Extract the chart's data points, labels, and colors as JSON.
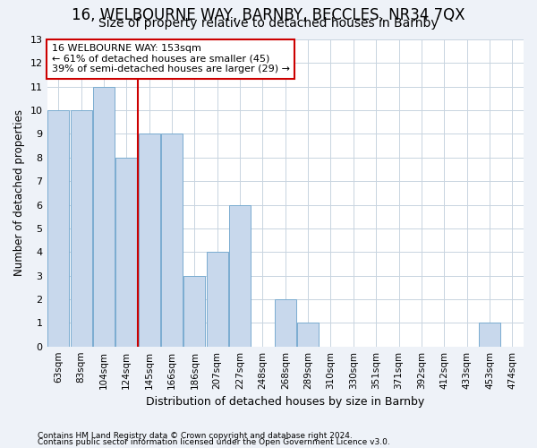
{
  "title": "16, WELBOURNE WAY, BARNBY, BECCLES, NR34 7QX",
  "subtitle": "Size of property relative to detached houses in Barnby",
  "xlabel": "Distribution of detached houses by size in Barnby",
  "ylabel": "Number of detached properties",
  "categories": [
    "63sqm",
    "83sqm",
    "104sqm",
    "124sqm",
    "145sqm",
    "166sqm",
    "186sqm",
    "207sqm",
    "227sqm",
    "248sqm",
    "268sqm",
    "289sqm",
    "310sqm",
    "330sqm",
    "351sqm",
    "371sqm",
    "392sqm",
    "412sqm",
    "433sqm",
    "453sqm",
    "474sqm"
  ],
  "values": [
    10,
    10,
    11,
    8,
    9,
    9,
    3,
    4,
    6,
    0,
    2,
    1,
    0,
    0,
    0,
    0,
    0,
    0,
    0,
    1,
    0
  ],
  "bar_color": "#c8d8ec",
  "bar_edge_color": "#7aacd0",
  "redline_index": 4,
  "redline_color": "#cc0000",
  "annotation_title": "16 WELBOURNE WAY: 153sqm",
  "annotation_line1": "← 61% of detached houses are smaller (45)",
  "annotation_line2": "39% of semi-detached houses are larger (29) →",
  "annotation_box_color": "#ffffff",
  "annotation_box_edge": "#cc0000",
  "ylim": [
    0,
    13
  ],
  "yticks": [
    0,
    1,
    2,
    3,
    4,
    5,
    6,
    7,
    8,
    9,
    10,
    11,
    12,
    13
  ],
  "grid_color": "#c8d4e0",
  "footer1": "Contains HM Land Registry data © Crown copyright and database right 2024.",
  "footer2": "Contains public sector information licensed under the Open Government Licence v3.0.",
  "bg_color": "#eef2f8",
  "plot_bg_color": "#ffffff",
  "title_fontsize": 12,
  "subtitle_fontsize": 10
}
